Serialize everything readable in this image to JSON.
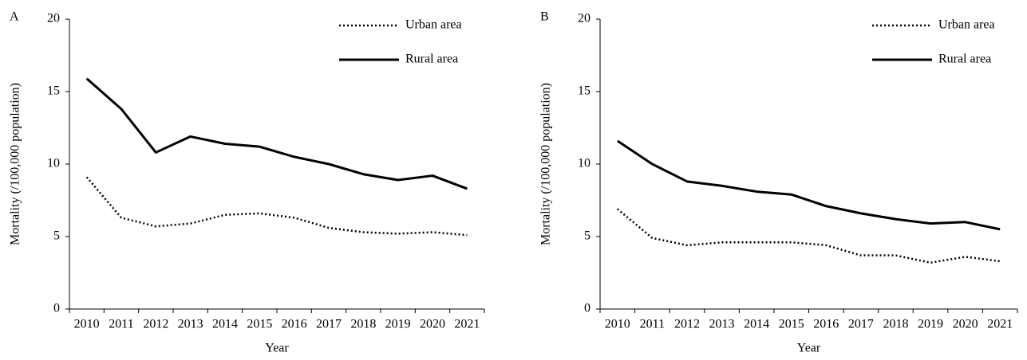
{
  "chart_data": [
    {
      "type": "line",
      "panel": "A",
      "ylabel": "Mortality (/100,000 population)",
      "xlabel": "Year",
      "categories": [
        "2010",
        "2011",
        "2012",
        "2013",
        "2014",
        "2015",
        "2016",
        "2017",
        "2018",
        "2019",
        "2020",
        "2021"
      ],
      "series": [
        {
          "name": "Urban area",
          "color": "#000000",
          "dash": "dotted",
          "values": [
            9.1,
            6.3,
            5.7,
            5.9,
            6.5,
            6.6,
            6.3,
            5.6,
            5.3,
            5.2,
            5.3,
            5.1
          ]
        },
        {
          "name": "Rural area",
          "color": "#000000",
          "dash": "solid",
          "values": [
            15.9,
            13.8,
            10.8,
            11.9,
            11.4,
            11.2,
            10.5,
            10.0,
            9.3,
            8.9,
            9.2,
            8.3
          ]
        }
      ],
      "ylim": [
        0,
        20
      ],
      "yticks": [
        0,
        5,
        10,
        15,
        20
      ],
      "legend": "top-right"
    },
    {
      "type": "line",
      "panel": "B",
      "ylabel": "Mortality (/100,000 population)",
      "xlabel": "Year",
      "categories": [
        "2010",
        "2011",
        "2012",
        "2013",
        "2014",
        "2015",
        "2016",
        "2017",
        "2018",
        "2019",
        "2020",
        "2021"
      ],
      "series": [
        {
          "name": "Urban area",
          "color": "#000000",
          "dash": "dotted",
          "values": [
            6.9,
            4.9,
            4.4,
            4.6,
            4.6,
            4.6,
            4.4,
            3.7,
            3.7,
            3.2,
            3.6,
            3.3
          ]
        },
        {
          "name": "Rural area",
          "color": "#000000",
          "dash": "solid",
          "values": [
            11.6,
            10.0,
            8.8,
            8.5,
            8.1,
            7.9,
            7.1,
            6.6,
            6.2,
            5.9,
            6.0,
            5.5
          ]
        }
      ],
      "ylim": [
        0,
        20
      ],
      "yticks": [
        0,
        5,
        10,
        15,
        20
      ],
      "legend": "top-right"
    }
  ]
}
